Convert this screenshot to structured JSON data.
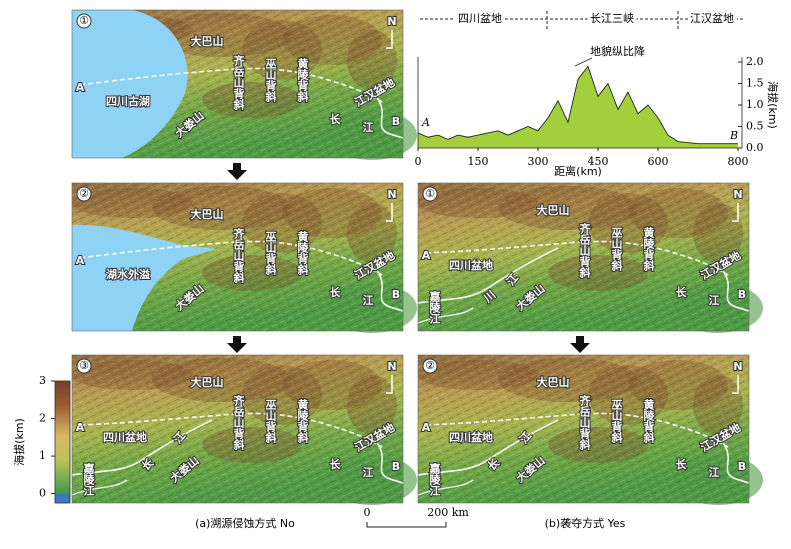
{
  "chart_data": {
    "type": "area",
    "segments": [
      "四川盆地",
      "长江三峡",
      "江汉盆地"
    ],
    "annotation": "地貌纵比降",
    "x_label": "距离(km)",
    "y_label": "海拔(km)",
    "start_label": "A",
    "end_label": "B",
    "color": "#a4cf3c",
    "x": [
      0,
      25,
      50,
      75,
      100,
      125,
      150,
      175,
      200,
      225,
      250,
      275,
      300,
      325,
      350,
      375,
      400,
      425,
      450,
      475,
      500,
      525,
      550,
      575,
      600,
      625,
      650,
      700,
      750,
      800
    ],
    "values": [
      0.35,
      0.25,
      0.3,
      0.2,
      0.3,
      0.25,
      0.3,
      0.35,
      0.4,
      0.3,
      0.4,
      0.5,
      0.4,
      0.7,
      1.1,
      0.6,
      1.6,
      1.9,
      1.2,
      1.5,
      0.9,
      1.3,
      0.8,
      1.0,
      0.7,
      0.3,
      0.15,
      0.1,
      0.1,
      0.1
    ],
    "xlim": [
      0,
      800
    ],
    "xticks": [
      0,
      150,
      300,
      450,
      600,
      800
    ],
    "ylim": [
      0,
      2
    ],
    "yticks": [
      {
        "value": 0,
        "label": "0.0"
      },
      {
        "value": 0.5,
        "label": "0.5"
      },
      {
        "value": 1,
        "label": "1.0"
      },
      {
        "value": 1.5,
        "label": "1.5"
      },
      {
        "value": 2,
        "label": "2.0"
      }
    ]
  },
  "colorbar": {
    "label": "海拔(km)",
    "lim": [
      -0.25,
      3
    ],
    "ticks": [
      0,
      1,
      2,
      3
    ]
  },
  "north": "N",
  "panels": [
    {
      "number": "①",
      "labels": [
        "大巴山",
        "齐岳山背斜",
        "巫山背斜",
        "黄陵背斜",
        "四川古湖",
        "大娄山",
        "江汉盆地",
        "长",
        "江",
        "A",
        "B"
      ]
    },
    {
      "number": "②",
      "labels": [
        "大巴山",
        "齐岳山背斜",
        "巫山背斜",
        "黄陵背斜",
        "湖水外溢",
        "大娄山",
        "江汉盆地",
        "长",
        "江",
        "A",
        "B"
      ]
    },
    {
      "number": "③",
      "labels": [
        "大巴山",
        "齐岳山背斜",
        "巫山背斜",
        "黄陵背斜",
        "四川盆地",
        "长",
        "江",
        "大娄山",
        "嘉陵江",
        "江汉盆地",
        "长",
        "江",
        "A",
        "B"
      ]
    },
    {
      "number": "①",
      "labels": [
        "大巴山",
        "齐岳山背斜",
        "巫山背斜",
        "黄陵背斜",
        "四川盆地",
        "江",
        "川",
        "大娄山",
        "嘉陵江",
        "江汉盆地",
        "长",
        "江",
        "A",
        "B"
      ]
    },
    {
      "number": "②",
      "labels": [
        "大巴山",
        "齐岳山背斜",
        "巫山背斜",
        "黄陵背斜",
        "四川盆地",
        "长",
        "江",
        "大娄山",
        "嘉陵江",
        "江汉盆地",
        "长",
        "江",
        "A",
        "B"
      ]
    }
  ],
  "scale": {
    "zero": "0",
    "length": "200 km"
  },
  "captions": [
    "(a)溯源侵蚀方式 No",
    "(b)袭夺方式 Yes"
  ]
}
